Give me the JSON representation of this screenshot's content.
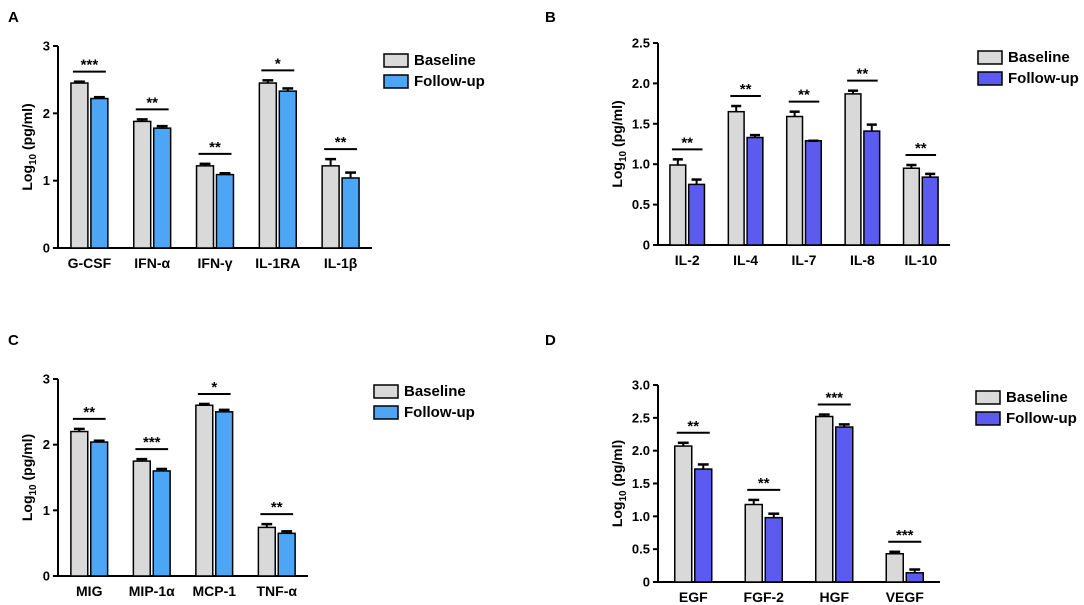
{
  "chart_data": [
    {
      "panel": "A",
      "type": "bar",
      "ylabel_main": "Log",
      "ylabel_sub": "10",
      "ylabel_rest": " (pg/ml)",
      "ylim": [
        0,
        3
      ],
      "yticks": [
        0,
        1,
        2,
        3
      ],
      "tick_decimals": 0,
      "categories": [
        "G-CSF",
        "IFN-α",
        "IFN-γ",
        "IL-1RA",
        "IL-1β"
      ],
      "series": [
        {
          "name": "Baseline",
          "color": "#d9d9d9",
          "values": [
            2.45,
            1.88,
            1.22,
            2.45,
            1.22
          ],
          "errors": [
            0.02,
            0.03,
            0.03,
            0.04,
            0.1
          ]
        },
        {
          "name": "Follow-up",
          "color": "#4da6f5",
          "values": [
            2.22,
            1.78,
            1.09,
            2.33,
            1.04
          ],
          "errors": [
            0.02,
            0.03,
            0.02,
            0.04,
            0.08
          ]
        }
      ],
      "significance": [
        "***",
        "**",
        "**",
        "*",
        "**"
      ]
    },
    {
      "panel": "B",
      "type": "bar",
      "ylabel_main": "Log",
      "ylabel_sub": "10",
      "ylabel_rest": " (pg/ml)",
      "ylim": [
        0,
        2.5
      ],
      "yticks": [
        0,
        0.5,
        1.0,
        1.5,
        2.0,
        2.5
      ],
      "tick_decimals": 1,
      "categories": [
        "IL-2",
        "IL-4",
        "IL-7",
        "IL-8",
        "IL-10"
      ],
      "series": [
        {
          "name": "Baseline",
          "color": "#d9d9d9",
          "values": [
            0.99,
            1.65,
            1.59,
            1.87,
            0.95
          ],
          "errors": [
            0.07,
            0.07,
            0.06,
            0.04,
            0.04
          ]
        },
        {
          "name": "Follow-up",
          "color": "#5b5bf0",
          "values": [
            0.75,
            1.33,
            1.29,
            1.41,
            0.84
          ],
          "errors": [
            0.06,
            0.03,
            0.0,
            0.08,
            0.04
          ]
        }
      ],
      "significance": [
        "**",
        "**",
        "**",
        "**",
        "**"
      ]
    },
    {
      "panel": "C",
      "type": "bar",
      "ylabel_main": "Log",
      "ylabel_sub": "10",
      "ylabel_rest": " (pg/ml)",
      "ylim": [
        0,
        3
      ],
      "yticks": [
        0,
        1,
        2,
        3
      ],
      "tick_decimals": 0,
      "categories": [
        "MIG",
        "MIP-1α",
        "MCP-1",
        "TNF-α"
      ],
      "series": [
        {
          "name": "Baseline",
          "color": "#d9d9d9",
          "values": [
            2.2,
            1.75,
            2.6,
            0.74
          ],
          "errors": [
            0.04,
            0.03,
            0.02,
            0.05
          ]
        },
        {
          "name": "Follow-up",
          "color": "#4da6f5",
          "values": [
            2.04,
            1.6,
            2.5,
            0.65
          ],
          "errors": [
            0.02,
            0.03,
            0.03,
            0.03
          ]
        }
      ],
      "significance": [
        "**",
        "***",
        "*",
        "**"
      ]
    },
    {
      "panel": "D",
      "type": "bar",
      "ylabel_main": "Log",
      "ylabel_sub": "10",
      "ylabel_rest": " (pg/ml)",
      "ylim": [
        0,
        3.0
      ],
      "yticks": [
        0,
        0.5,
        1.0,
        1.5,
        2.0,
        2.5,
        3.0
      ],
      "tick_decimals": 1,
      "categories": [
        "EGF",
        "FGF-2",
        "HGF",
        "VEGF"
      ],
      "series": [
        {
          "name": "Baseline",
          "color": "#d9d9d9",
          "values": [
            2.07,
            1.18,
            2.52,
            0.43
          ],
          "errors": [
            0.05,
            0.07,
            0.03,
            0.03
          ]
        },
        {
          "name": "Follow-up",
          "color": "#5b5bf0",
          "values": [
            1.72,
            0.98,
            2.36,
            0.14
          ],
          "errors": [
            0.07,
            0.06,
            0.04,
            0.05
          ]
        }
      ],
      "significance": [
        "**",
        "**",
        "***",
        "***"
      ]
    }
  ]
}
